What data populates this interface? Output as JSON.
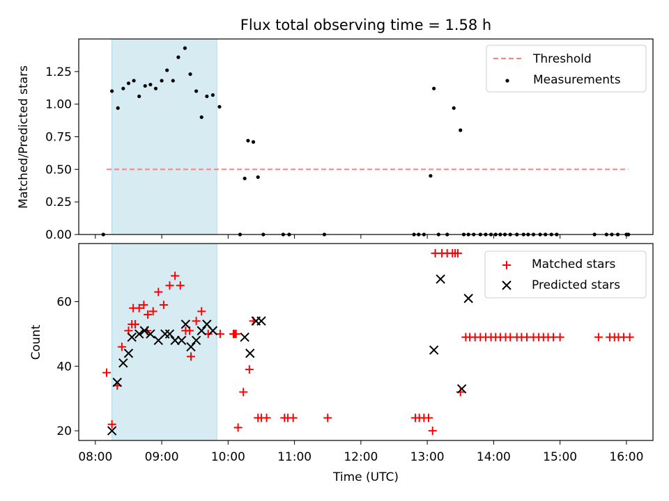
{
  "chart_data": [
    {
      "type": "scatter",
      "title": "Flux total observing time = 1.58 h",
      "xlabel": "",
      "ylabel": "Matched/Predicted stars",
      "xlim": [
        7.75,
        16.4
      ],
      "ylim": [
        0,
        1.5
      ],
      "yticks": [
        0.0,
        0.25,
        0.5,
        0.75,
        1.0,
        1.25
      ],
      "ytick_labels": [
        "0.00",
        "0.25",
        "0.50",
        "0.75",
        "1.00",
        "1.25"
      ],
      "xticks": [
        8,
        9,
        10,
        11,
        12,
        13,
        14,
        15,
        16
      ],
      "shaded_span": [
        8.25,
        9.83
      ],
      "threshold": {
        "name": "Threshold",
        "y": 0.5,
        "x_range": [
          8.17,
          16.03
        ],
        "color": "#ff7f7f"
      },
      "legend_position": "top-right",
      "series": [
        {
          "name": "Measurements",
          "color": "#000000",
          "x": [
            8.12,
            8.25,
            8.34,
            8.42,
            8.5,
            8.58,
            8.66,
            8.75,
            8.83,
            8.91,
            9.0,
            9.08,
            9.17,
            9.25,
            9.35,
            9.43,
            9.52,
            9.6,
            9.68,
            9.77,
            9.87,
            10.18,
            10.25,
            10.3,
            10.38,
            10.45,
            10.53,
            10.83,
            10.92,
            11.45,
            12.8,
            12.87,
            12.95,
            13.05,
            13.1,
            13.17,
            13.3,
            13.4,
            13.5,
            13.55,
            13.62,
            13.7,
            13.8,
            13.88,
            13.96,
            14.03,
            14.1,
            14.17,
            14.25,
            14.35,
            14.45,
            14.52,
            14.6,
            14.7,
            14.78,
            14.87,
            14.95,
            15.52,
            15.7,
            15.78,
            15.87,
            16.0,
            16.03
          ],
          "y": [
            0.0,
            1.1,
            0.97,
            1.12,
            1.16,
            1.18,
            1.06,
            1.14,
            1.15,
            1.12,
            1.18,
            1.26,
            1.18,
            1.36,
            1.43,
            1.23,
            1.1,
            0.9,
            1.06,
            1.07,
            0.98,
            0.0,
            0.43,
            0.72,
            0.71,
            0.44,
            0.0,
            0.0,
            0.0,
            0.0,
            0.0,
            0.0,
            0.0,
            0.45,
            1.12,
            0.0,
            0.0,
            0.97,
            0.8,
            0.0,
            0.0,
            0.0,
            0.0,
            0.0,
            0.0,
            0.0,
            0.0,
            0.0,
            0.0,
            0.0,
            0.0,
            0.0,
            0.0,
            0.0,
            0.0,
            0.0,
            0.0,
            0.0,
            0.0,
            0.0,
            0.0,
            0.0,
            0.0
          ],
          "x_extra": [],
          "y_extra": []
        }
      ]
    },
    {
      "type": "scatter",
      "title": "",
      "xlabel": "Time (UTC)",
      "ylabel": "Count",
      "xlim": [
        7.75,
        16.4
      ],
      "ylim": [
        17,
        78
      ],
      "yticks": [
        20,
        40,
        60
      ],
      "ytick_labels": [
        "20",
        "40",
        "60"
      ],
      "xticks": [
        8,
        9,
        10,
        11,
        12,
        13,
        14,
        15,
        16
      ],
      "xtick_labels": [
        "08:00",
        "09:00",
        "10:00",
        "11:00",
        "12:00",
        "13:00",
        "14:00",
        "15:00",
        "16:00"
      ],
      "shaded_span": [
        8.25,
        9.83
      ],
      "legend_position": "top-right",
      "series": [
        {
          "name": "Matched stars",
          "marker": "plus",
          "color": "#ff0000",
          "x": [
            8.17,
            8.25,
            8.33,
            8.4,
            8.5,
            8.57,
            8.6,
            8.66,
            8.73,
            8.79,
            8.87,
            8.95,
            9.03,
            9.12,
            9.2,
            9.28,
            9.36,
            9.44,
            9.52,
            9.6,
            9.7,
            9.88,
            10.08,
            10.15,
            10.23,
            10.32,
            10.38,
            10.45,
            10.5,
            10.58,
            10.85,
            10.9,
            10.98,
            11.5,
            12.82,
            12.88,
            12.95,
            13.02,
            13.08,
            13.12,
            13.22,
            13.3,
            13.38,
            13.42,
            13.46,
            13.5,
            13.58,
            13.64,
            13.72,
            13.8,
            13.88,
            13.96,
            14.03,
            14.1,
            14.18,
            14.25,
            14.35,
            14.42,
            14.5,
            14.6,
            14.68,
            14.75,
            14.82,
            14.9,
            15.0,
            15.58,
            15.75,
            15.82,
            15.88,
            15.96,
            16.05
          ],
          "y": [
            38,
            22,
            34,
            46,
            51,
            58,
            53,
            58,
            59,
            56,
            57,
            63,
            59,
            65,
            68,
            65,
            51,
            43,
            54,
            57,
            50,
            50,
            50,
            21,
            32,
            39,
            54,
            24,
            24,
            24,
            24,
            24,
            24,
            24,
            24,
            24,
            24,
            24,
            20,
            75,
            75,
            75,
            75,
            75,
            75,
            32,
            49,
            49,
            49,
            49,
            49,
            49,
            49,
            49,
            49,
            49,
            49,
            49,
            49,
            49,
            49,
            49,
            49,
            49,
            49,
            49,
            49,
            49,
            49,
            49,
            49
          ],
          "x_extra": [
            8.55,
            8.78,
            9.42,
            10.1,
            10.12
          ],
          "y_extra": [
            53,
            51,
            51,
            50,
            50
          ]
        },
        {
          "name": "Predicted stars",
          "marker": "x",
          "color": "#000000",
          "x": [
            8.25,
            8.33,
            8.42,
            8.5,
            8.55,
            8.66,
            8.74,
            8.83,
            8.95,
            9.05,
            9.12,
            9.2,
            9.3,
            9.36,
            9.44,
            9.52,
            9.6,
            9.68,
            9.77,
            10.25,
            10.33,
            10.42,
            10.5,
            13.1,
            13.2,
            13.52,
            13.62
          ],
          "y": [
            20,
            35,
            41,
            44,
            49,
            50,
            51,
            50,
            48,
            50,
            50,
            48,
            48,
            53,
            46,
            48,
            51,
            53,
            51,
            49,
            44,
            54,
            54,
            45,
            67,
            33,
            61
          ]
        }
      ]
    }
  ]
}
